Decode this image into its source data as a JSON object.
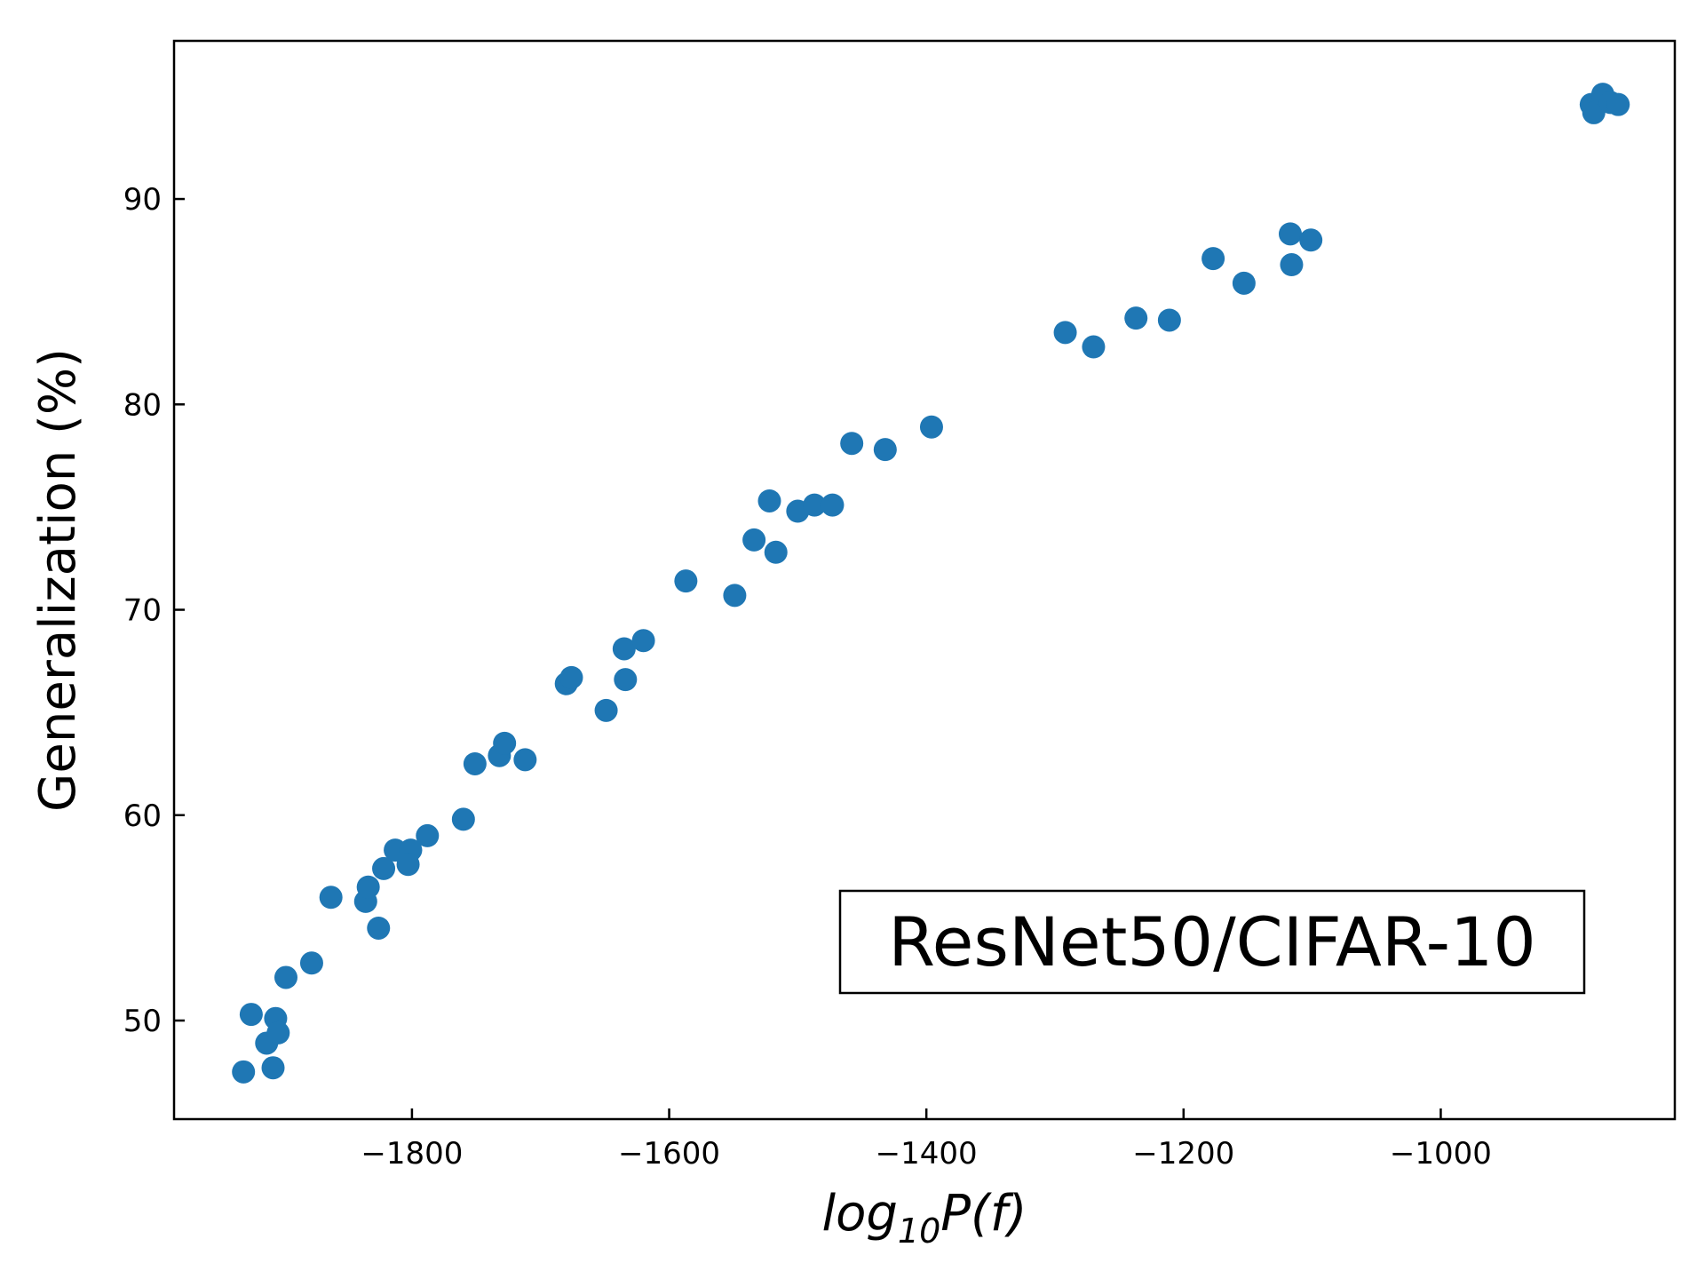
{
  "chart_data": {
    "type": "scatter",
    "title": "",
    "xlabel": {
      "base": "log",
      "subscript": "10",
      "tail": "P(f)"
    },
    "ylabel": "Generalization (%)",
    "annotation": "ResNet50/CIFAR-10",
    "xlim": [
      -1985,
      -818
    ],
    "ylim": [
      45.2,
      97.7
    ],
    "xticks": [
      -1800,
      -1600,
      -1400,
      -1200,
      -1000
    ],
    "xtick_labels": [
      "−1800",
      "−1600",
      "−1400",
      "−1200",
      "−1000"
    ],
    "yticks": [
      50,
      60,
      70,
      80,
      90
    ],
    "ytick_labels": [
      "50",
      "60",
      "70",
      "80",
      "90"
    ],
    "grid": false,
    "color": "#1f77b4",
    "series": [
      {
        "x": [
          -1931,
          -1925,
          -1913,
          -1908,
          -1906,
          -1904,
          -1898,
          -1878,
          -1863,
          -1836,
          -1834,
          -1826,
          -1822,
          -1813,
          -1801,
          -1803,
          -1788,
          -1760,
          -1751,
          -1732,
          -1728,
          -1712,
          -1680,
          -1676,
          -1649,
          -1635,
          -1634,
          -1620,
          -1587,
          -1549,
          -1534,
          -1522,
          -1517,
          -1500,
          -1487,
          -1473,
          -1458,
          -1432,
          -1396,
          -1292,
          -1270,
          -1237,
          -1211,
          -1177,
          -1153,
          -1117,
          -1116,
          -1101,
          -883,
          -881,
          -874,
          -868,
          -862
        ],
        "y": [
          47.5,
          50.3,
          48.9,
          47.7,
          50.1,
          49.4,
          52.1,
          52.8,
          56.0,
          55.8,
          56.5,
          54.5,
          57.4,
          58.3,
          58.3,
          57.6,
          59.0,
          59.8,
          62.5,
          62.9,
          63.5,
          62.7,
          66.4,
          66.7,
          65.1,
          68.1,
          66.6,
          68.5,
          71.4,
          70.7,
          73.4,
          75.3,
          72.8,
          74.8,
          75.1,
          75.1,
          78.1,
          77.8,
          78.9,
          83.5,
          82.8,
          84.2,
          84.1,
          87.1,
          85.9,
          88.3,
          86.8,
          88.0,
          94.6,
          94.2,
          95.1,
          94.7,
          94.6
        ]
      }
    ]
  }
}
